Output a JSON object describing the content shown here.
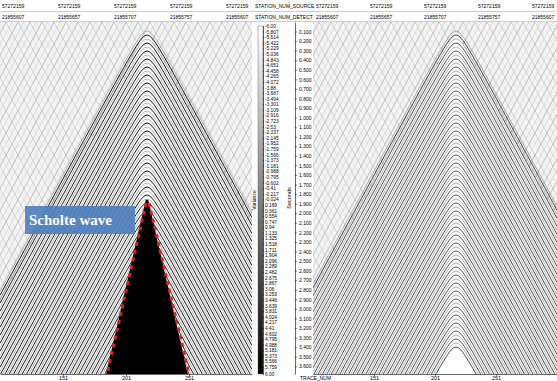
{
  "chart_data": {
    "type": "seismic",
    "header": [
      {
        "label": "STATION_NUM_SOURCE",
        "left": [
          "57272159",
          "57272159",
          "57272159",
          "57272159",
          "57272159"
        ],
        "right": [
          "57272159",
          "57272159",
          "57272159",
          "57272159",
          "57272159"
        ]
      },
      {
        "label": "STATION_NUM_DETECT",
        "left": [
          "21855607",
          "21855657",
          "21855707",
          "21855757",
          "21855607"
        ],
        "right": [
          "21855607",
          "21855657",
          "21855707",
          "21855757",
          "21855607"
        ]
      }
    ],
    "annotation": "Scholte wave",
    "x_label": "TRACE_NUM",
    "xlim": [
      101,
      301
    ],
    "xticks": [
      151,
      201,
      251
    ],
    "y_label": "Seconds",
    "ylim": [
      0,
      3.68
    ],
    "yticks": [
      {
        "value": 0.1,
        "label": "0.100"
      },
      {
        "value": 0.2,
        "label": "0.200"
      },
      {
        "value": 0.3,
        "label": "0.300"
      },
      {
        "value": 0.4,
        "label": "0.400"
      },
      {
        "value": 0.5,
        "label": "0.500"
      },
      {
        "value": 0.6,
        "label": "0.600"
      },
      {
        "value": 0.7,
        "label": "0.700"
      },
      {
        "value": 0.8,
        "label": "0.800"
      },
      {
        "value": 0.9,
        "label": "0.900"
      },
      {
        "value": 1.0,
        "label": "1.000"
      },
      {
        "value": 1.1,
        "label": "1.100"
      },
      {
        "value": 1.2,
        "label": "1.200"
      },
      {
        "value": 1.3,
        "label": "1.300"
      },
      {
        "value": 1.4,
        "label": "1.400"
      },
      {
        "value": 1.5,
        "label": "1.500"
      },
      {
        "value": 1.6,
        "label": "1.600"
      },
      {
        "value": 1.7,
        "label": "1.700"
      },
      {
        "value": 1.8,
        "label": "1.800"
      },
      {
        "value": 1.9,
        "label": "1.900"
      },
      {
        "value": 2.0,
        "label": "2.000"
      },
      {
        "value": 2.1,
        "label": "2.100"
      },
      {
        "value": 2.2,
        "label": "2.200"
      },
      {
        "value": 2.3,
        "label": "2.300"
      },
      {
        "value": 2.4,
        "label": "2.400"
      },
      {
        "value": 2.5,
        "label": "2.500"
      },
      {
        "value": 2.6,
        "label": "2.600"
      },
      {
        "value": 2.7,
        "label": "2.700"
      },
      {
        "value": 2.8,
        "label": "2.800"
      },
      {
        "value": 2.9,
        "label": "2.900"
      },
      {
        "value": 3.0,
        "label": "3.000"
      },
      {
        "value": 3.1,
        "label": "3.100"
      },
      {
        "value": 3.2,
        "label": "3.200"
      },
      {
        "value": 3.3,
        "label": "3.300"
      },
      {
        "value": 3.4,
        "label": "3.400"
      },
      {
        "value": 3.5,
        "label": "3.500"
      },
      {
        "value": 3.6,
        "label": "3.600"
      }
    ],
    "colorbar_label": "Variance",
    "colorbar_range": [
      -6,
      6
    ],
    "colorbar_ticks": [
      {
        "value": -6,
        "label": "-6.00"
      },
      -5.807,
      -5.614,
      -5.422,
      -5.229,
      -5.036,
      -4.843,
      -4.651,
      -4.458,
      -4.265,
      -4.072,
      -3.88,
      -3.687,
      -3.494,
      -3.301,
      -3.109,
      -2.916,
      -2.723,
      -2.53,
      -2.337,
      -2.145,
      -1.952,
      -1.759,
      -1.566,
      -1.373,
      -1.181,
      -0.988,
      -0.795,
      -0.602,
      -0.41,
      -0.217,
      -0.024,
      0.169,
      0.361,
      0.554,
      0.747,
      0.94,
      1.133,
      1.325,
      1.518,
      1.711,
      1.904,
      2.096,
      2.289,
      2.482,
      2.675,
      2.867,
      3.06,
      3.253,
      3.446,
      3.639,
      3.831,
      4.024,
      4.217,
      4.41,
      4.602,
      4.795,
      4.988,
      5.181,
      5.373,
      5.566,
      5.759,
      {
        "value": 6,
        "label": "6.00"
      }
    ]
  }
}
